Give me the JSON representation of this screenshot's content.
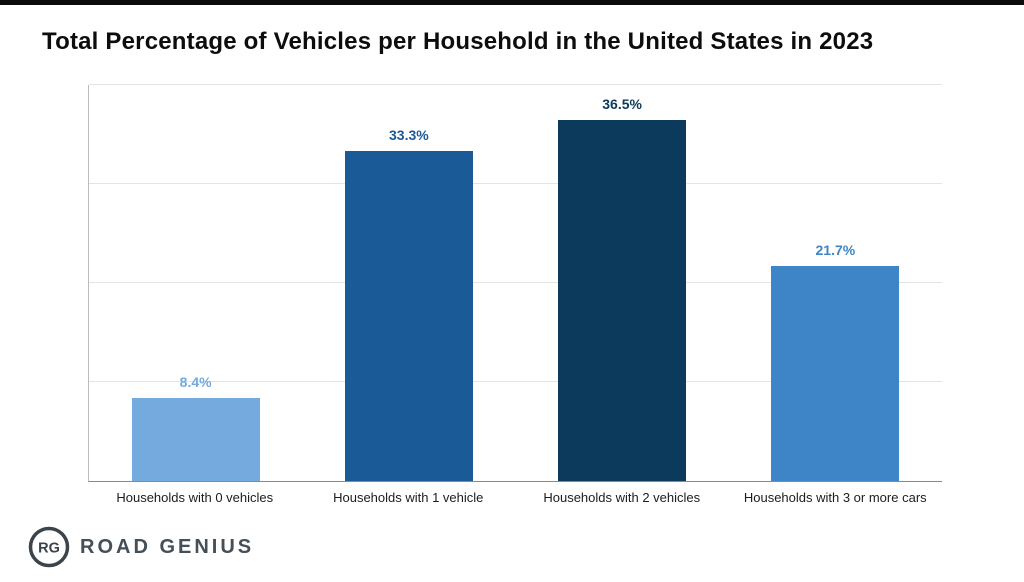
{
  "chart_data": {
    "type": "bar",
    "title": "Total Percentage of Vehicles per Household in the United States in 2023",
    "categories": [
      "Households with 0 vehicles",
      "Households with 1 vehicle",
      "Households with 2 vehicles",
      "Households with 3 or more cars"
    ],
    "values": [
      8.4,
      33.3,
      36.5,
      21.7
    ],
    "value_labels": [
      "8.4%",
      "33.3%",
      "36.5%",
      "21.7%"
    ],
    "bar_colors": [
      "#74aadd",
      "#1a5a96",
      "#0c3a5d",
      "#3d85c6"
    ],
    "label_colors": [
      "#74aadd",
      "#1a5a96",
      "#0c3a5d",
      "#3d85c6"
    ],
    "xlabel": "",
    "ylabel": "",
    "ylim": [
      0,
      40
    ],
    "gridlines": [
      10,
      20,
      30,
      40
    ],
    "legend": "none",
    "grid": "horizontal"
  },
  "brand": {
    "logo_initials": "RG",
    "name": "ROAD GENIUS"
  }
}
